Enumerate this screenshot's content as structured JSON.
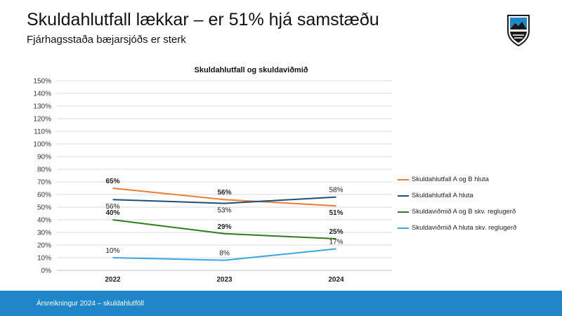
{
  "header": {
    "title": "Skuldahlutfall lækkar – er 51% hjá samstæðu",
    "subtitle": "Fjárhagsstaða bæjarsjóðs er sterk"
  },
  "logo": {
    "icon": "municipal-crest-shield-icon",
    "colors": [
      "#1f87c9",
      "#1a1a1a",
      "#ffffff"
    ]
  },
  "footer": {
    "text": "Ársreikningur 2024 – skuldahlutföll",
    "color": "#1f87c9"
  },
  "chart_data": {
    "type": "line",
    "title": "Skuldahlutfall og skuldaviðmið",
    "categories": [
      "2022",
      "2023",
      "2024"
    ],
    "ylim": [
      0,
      150
    ],
    "ytick_step": 10,
    "ytick_labels": [
      "0%",
      "10%",
      "20%",
      "30%",
      "40%",
      "50%",
      "60%",
      "70%",
      "80%",
      "90%",
      "100%",
      "110%",
      "120%",
      "130%",
      "140%",
      "150%"
    ],
    "grid": true,
    "legend_position": "right",
    "series": [
      {
        "name": "Skuldahlutfall A og B hluta",
        "color": "#ed7d31",
        "values": [
          65,
          56,
          51
        ],
        "labels": [
          "65%",
          "56%",
          "51%"
        ],
        "label_bold": true,
        "label_positions": [
          "above",
          "above",
          "below"
        ]
      },
      {
        "name": "Skuldahlutfall A hluta",
        "color": "#1f4e79",
        "values": [
          56,
          53,
          58
        ],
        "labels": [
          "56%",
          "53%",
          "58%"
        ],
        "label_bold": false,
        "label_positions": [
          "below",
          "below",
          "above"
        ]
      },
      {
        "name": "Skuldaviðmið A og B skv. reglugerð",
        "color": "#2e7d1a",
        "values": [
          40,
          29,
          25
        ],
        "labels": [
          "40%",
          "29%",
          "25%"
        ],
        "label_bold": true,
        "label_positions": [
          "above",
          "above",
          "above"
        ]
      },
      {
        "name": "Skuldaviðmið A hluta skv. reglugerð",
        "color": "#3aa6e0",
        "values": [
          10,
          8,
          17
        ],
        "labels": [
          "10%",
          "8%",
          "17%"
        ],
        "label_bold": false,
        "label_positions": [
          "above",
          "above",
          "above"
        ]
      }
    ]
  }
}
